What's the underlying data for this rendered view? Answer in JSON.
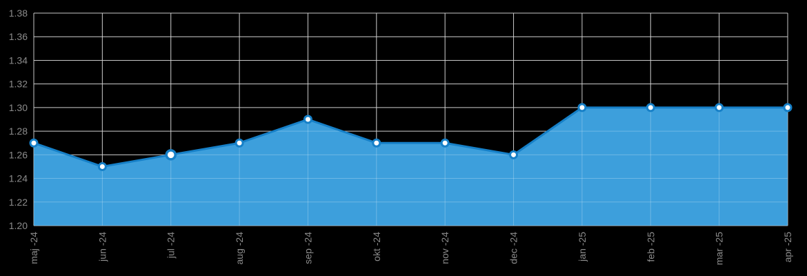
{
  "chart_data": {
    "type": "area",
    "title": "",
    "xlabel": "",
    "ylabel": "",
    "categories": [
      "maj -24",
      "jun -24",
      "jul -24",
      "aug -24",
      "sep -24",
      "okt -24",
      "nov -24",
      "dec -24",
      "jan -25",
      "feb -25",
      "mar -25",
      "apr -25"
    ],
    "series": [
      {
        "values": [
          1.27,
          1.25,
          1.26,
          1.27,
          1.29,
          1.27,
          1.27,
          1.26,
          1.3,
          1.3,
          1.3,
          1.3
        ]
      }
    ],
    "ylim": [
      1.2,
      1.38
    ],
    "yticks": [
      "1.20",
      "1.22",
      "1.24",
      "1.26",
      "1.28",
      "1.30",
      "1.32",
      "1.34",
      "1.36",
      "1.38"
    ],
    "grid": true,
    "legend": "none",
    "highlighted_category": "jul -24"
  },
  "colors": {
    "background": "#000000",
    "grid": "#b4b4b4",
    "fill": "#3d9fdc",
    "line": "#1680c8",
    "marker_fill": "#ffffff",
    "tick_text": "#8c8c8c"
  }
}
